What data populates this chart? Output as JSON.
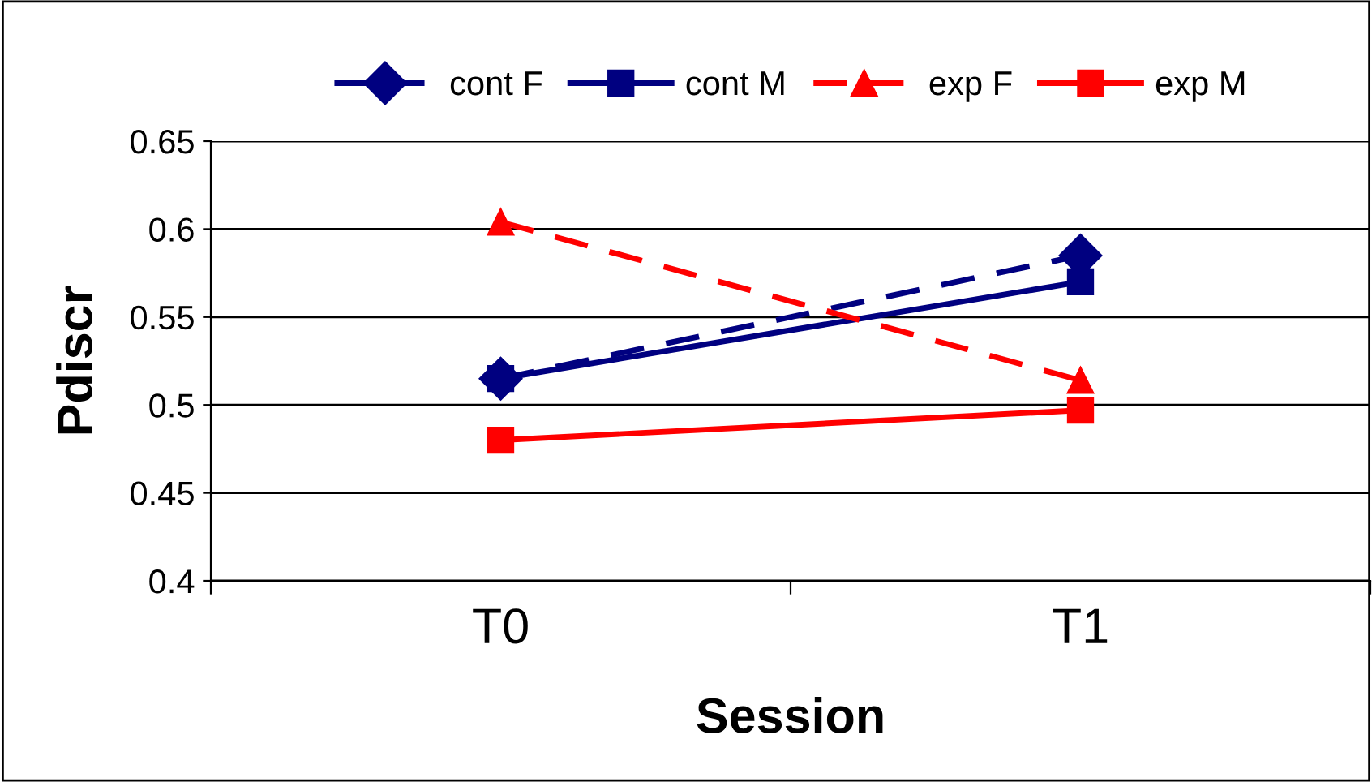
{
  "chart_data": {
    "type": "line",
    "xlabel": "Session",
    "ylabel": "Pdiscr",
    "categories": [
      "T0",
      "T1"
    ],
    "series": [
      {
        "name": "cont F",
        "color": "#000080",
        "values": [
          0.515,
          0.585
        ],
        "marker": "diamond",
        "line_style": "dashed"
      },
      {
        "name": "cont M",
        "color": "#000080",
        "values": [
          0.515,
          0.57
        ],
        "marker": "square",
        "line_style": "solid"
      },
      {
        "name": "exp F",
        "color": "#ff0000",
        "values": [
          0.604,
          0.514
        ],
        "marker": "triangle",
        "line_style": "dashed"
      },
      {
        "name": "exp M",
        "color": "#ff0000",
        "values": [
          0.48,
          0.497
        ],
        "marker": "square",
        "line_style": "solid"
      }
    ],
    "ylim": [
      0.4,
      0.65
    ],
    "yticks": [
      0.4,
      0.45,
      0.5,
      0.55,
      0.6,
      0.65
    ],
    "grid": "y",
    "legend": "top"
  }
}
